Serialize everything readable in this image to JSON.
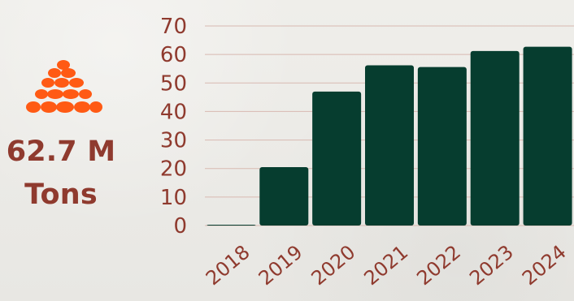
{
  "summary": {
    "value": "62.7 M",
    "unit": "Tons",
    "icon": "stone-pile-icon",
    "accent_color": "#ff5a14",
    "text_color": "#8f3a2e"
  },
  "chart_data": {
    "type": "bar",
    "categories": [
      "2018",
      "2019",
      "2020",
      "2021",
      "2022",
      "2023",
      "2024"
    ],
    "values": [
      0.3,
      20.5,
      47,
      56.2,
      55.6,
      61.2,
      62.7
    ],
    "yticks": [
      0,
      10,
      20,
      30,
      40,
      50,
      60,
      70
    ],
    "ylim": [
      0,
      70
    ],
    "grid": true,
    "bar_color": "#063d2f",
    "axis_text_color": "#8f3a2e",
    "grid_color": "#d8b9b1"
  }
}
